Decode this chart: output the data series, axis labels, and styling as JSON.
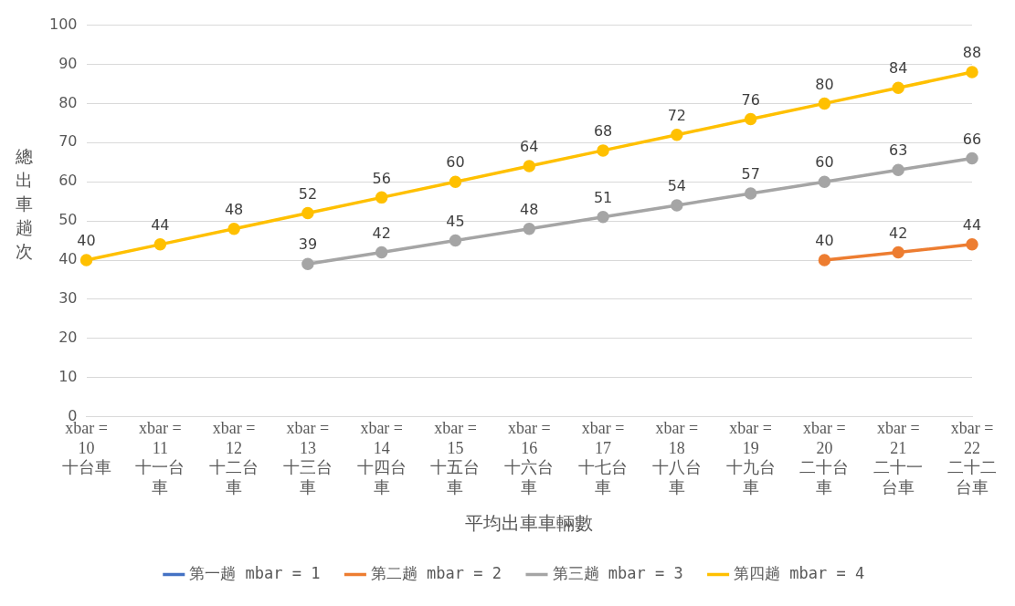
{
  "chart_data": {
    "type": "line",
    "xlabel": "平均出車車輛數",
    "ylabel": "總出車趟次",
    "categories": [
      "xbar = 10\n十台車",
      "xbar = 11\n十一台車",
      "xbar = 12\n十二台車",
      "xbar = 13\n十三台車",
      "xbar = 14\n十四台車",
      "xbar = 15\n十五台車",
      "xbar = 16\n十六台車",
      "xbar = 17\n十七台車",
      "xbar = 18\n十八台車",
      "xbar = 19\n十九台車",
      "xbar = 20\n二十台車",
      "xbar = 21\n二十一台車",
      "xbar = 22\n二十二台車"
    ],
    "series": [
      {
        "name": "第一趟 mbar = 1",
        "color": "#4472c4",
        "values": [
          null,
          null,
          null,
          null,
          null,
          null,
          null,
          null,
          null,
          null,
          null,
          null,
          null
        ]
      },
      {
        "name": "第二趟 mbar = 2",
        "color": "#ed7d31",
        "values": [
          null,
          null,
          null,
          null,
          null,
          null,
          null,
          null,
          null,
          null,
          40,
          42,
          44
        ]
      },
      {
        "name": "第三趟 mbar = 3",
        "color": "#a5a5a5",
        "values": [
          null,
          null,
          null,
          39,
          42,
          45,
          48,
          51,
          54,
          57,
          60,
          63,
          66
        ]
      },
      {
        "name": "第四趟 mbar = 4",
        "color": "#ffc000",
        "values": [
          40,
          44,
          48,
          52,
          56,
          60,
          64,
          68,
          72,
          76,
          80,
          84,
          88
        ]
      }
    ],
    "ylim": [
      0,
      100
    ],
    "yticks": [
      0,
      10,
      20,
      30,
      40,
      50,
      60,
      70,
      80,
      90,
      100
    ],
    "grid": "y",
    "legend": "bottom",
    "marker": "circle",
    "line_style": "solid",
    "data_labels": true
  }
}
